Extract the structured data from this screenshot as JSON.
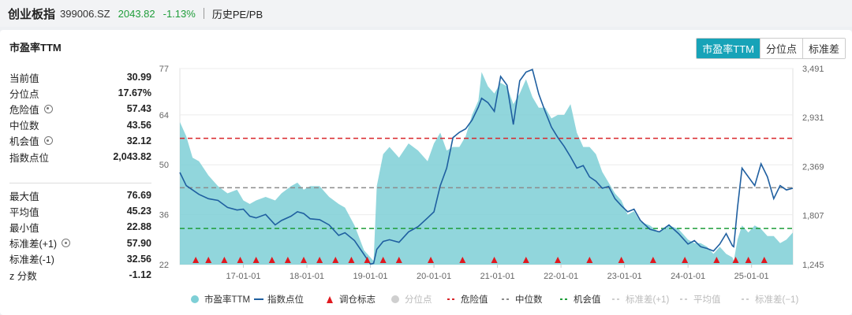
{
  "header": {
    "name": "创业板指",
    "code": "399006.SZ",
    "price": "2043.82",
    "change": "-1.13%",
    "tab": "历史PE/PB"
  },
  "panel": {
    "title": "市盈率TTM",
    "buttons": [
      "市盈率TTM",
      "分位点",
      "标准差"
    ]
  },
  "stats_top": [
    {
      "label": "当前值",
      "value": "30.99",
      "gear": false
    },
    {
      "label": "分位点",
      "value": "17.67%",
      "gear": false
    },
    {
      "label": "危险值",
      "value": "57.43",
      "gear": true
    },
    {
      "label": "中位数",
      "value": "43.56",
      "gear": false
    },
    {
      "label": "机会值",
      "value": "32.12",
      "gear": true
    },
    {
      "label": "指数点位",
      "value": "2,043.82",
      "gear": false
    }
  ],
  "stats_bottom": [
    {
      "label": "最大值",
      "value": "76.69",
      "gear": false
    },
    {
      "label": "平均值",
      "value": "45.23",
      "gear": false
    },
    {
      "label": "最小值",
      "value": "22.88",
      "gear": false
    },
    {
      "label": "标准差(+1)",
      "value": "57.90",
      "gear": true
    },
    {
      "label": "标准差(-1)",
      "value": "32.56",
      "gear": false
    },
    {
      "label": "z 分数",
      "value": "-1.12",
      "gear": false
    }
  ],
  "chart_data": {
    "type": "area",
    "y_left": {
      "ticks": [
        "77",
        "64",
        "50",
        "36",
        "22"
      ],
      "values": [
        77,
        64,
        50,
        36,
        22
      ],
      "ylim": [
        22,
        77
      ]
    },
    "y_right": {
      "ticks": [
        "3,491",
        "2,931",
        "2,369",
        "1,807",
        "1,245"
      ],
      "values": [
        3491,
        2931,
        2369,
        1807,
        1245
      ],
      "ylim": [
        1245,
        3491
      ]
    },
    "x_ticks": [
      "17-01-01",
      "18-01-01",
      "19-01-01",
      "20-01-01",
      "21-01-01",
      "22-01-01",
      "23-01-01",
      "24-01-01",
      "25-01-01"
    ],
    "x_range_years": [
      2016.0,
      2025.65
    ],
    "x_tick_years": [
      2017,
      2018,
      2019,
      2020,
      2021,
      2022,
      2023,
      2024,
      2025
    ],
    "ref_lines": [
      {
        "name": "危险值",
        "value": 57.43,
        "color": "#d9252a"
      },
      {
        "name": "中位数",
        "value": 43.56,
        "color": "#8c8c8c"
      },
      {
        "name": "机会值",
        "value": 32.12,
        "color": "#1f9d3a"
      }
    ],
    "series": [
      {
        "name": "市盈率TTM",
        "axis": "left",
        "color": "#7ecfd6",
        "x": [
          2016.0,
          2016.1,
          2016.2,
          2016.3,
          2016.45,
          2016.6,
          2016.75,
          2016.9,
          2017.0,
          2017.1,
          2017.2,
          2017.35,
          2017.5,
          2017.6,
          2017.75,
          2017.85,
          2017.95,
          2018.05,
          2018.2,
          2018.35,
          2018.5,
          2018.6,
          2018.75,
          2018.9,
          2019.0,
          2019.05,
          2019.1,
          2019.2,
          2019.3,
          2019.45,
          2019.6,
          2019.75,
          2019.9,
          2020.0,
          2020.1,
          2020.2,
          2020.3,
          2020.4,
          2020.5,
          2020.6,
          2020.7,
          2020.75,
          2020.85,
          2020.95,
          2021.05,
          2021.15,
          2021.25,
          2021.35,
          2021.45,
          2021.55,
          2021.65,
          2021.75,
          2021.85,
          2021.95,
          2022.05,
          2022.15,
          2022.25,
          2022.35,
          2022.45,
          2022.55,
          2022.65,
          2022.75,
          2022.85,
          2022.95,
          2023.05,
          2023.15,
          2023.25,
          2023.4,
          2023.55,
          2023.7,
          2023.85,
          2024.0,
          2024.1,
          2024.2,
          2024.3,
          2024.4,
          2024.5,
          2024.6,
          2024.7,
          2024.72,
          2024.78,
          2024.85,
          2024.95,
          2025.05,
          2025.15,
          2025.25,
          2025.35,
          2025.45,
          2025.55,
          2025.65
        ],
        "y": [
          62,
          58,
          52,
          51,
          47,
          44,
          42,
          43,
          40,
          39,
          40,
          41,
          40,
          42,
          44,
          45,
          43,
          44,
          44,
          41,
          39,
          38,
          33,
          26,
          24,
          23,
          44,
          53,
          55,
          52,
          56,
          54,
          51,
          56,
          59,
          54,
          55,
          55,
          58,
          64,
          68,
          76,
          72,
          70,
          73,
          72,
          67,
          70,
          74,
          69,
          66,
          66,
          63,
          64,
          64,
          67,
          59,
          55,
          55,
          53,
          48,
          45,
          42,
          40,
          36,
          37,
          34,
          33,
          31,
          33,
          32,
          29,
          28,
          28,
          27,
          25,
          27,
          25,
          24,
          23,
          29,
          33,
          31,
          33,
          32,
          30,
          30,
          28,
          29,
          31
        ]
      },
      {
        "name": "指数点位",
        "axis": "right",
        "color": "#1f5fa0",
        "x": [
          2016.0,
          2016.1,
          2016.2,
          2016.3,
          2016.45,
          2016.6,
          2016.75,
          2016.9,
          2017.0,
          2017.1,
          2017.2,
          2017.35,
          2017.5,
          2017.6,
          2017.75,
          2017.85,
          2017.95,
          2018.05,
          2018.2,
          2018.35,
          2018.5,
          2018.6,
          2018.75,
          2018.9,
          2019.0,
          2019.05,
          2019.1,
          2019.2,
          2019.3,
          2019.45,
          2019.6,
          2019.75,
          2019.9,
          2020.0,
          2020.1,
          2020.2,
          2020.3,
          2020.4,
          2020.5,
          2020.6,
          2020.7,
          2020.75,
          2020.85,
          2020.95,
          2021.05,
          2021.15,
          2021.25,
          2021.35,
          2021.45,
          2021.55,
          2021.65,
          2021.75,
          2021.85,
          2021.95,
          2022.05,
          2022.15,
          2022.25,
          2022.35,
          2022.45,
          2022.55,
          2022.65,
          2022.75,
          2022.85,
          2022.95,
          2023.05,
          2023.15,
          2023.25,
          2023.4,
          2023.55,
          2023.7,
          2023.85,
          2024.0,
          2024.1,
          2024.2,
          2024.3,
          2024.4,
          2024.5,
          2024.6,
          2024.7,
          2024.72,
          2024.78,
          2024.85,
          2024.95,
          2025.05,
          2025.15,
          2025.25,
          2025.35,
          2025.45,
          2025.55,
          2025.65
        ],
        "y": [
          2300,
          2150,
          2100,
          2050,
          2000,
          1980,
          1900,
          1870,
          1880,
          1800,
          1780,
          1820,
          1700,
          1750,
          1800,
          1850,
          1830,
          1770,
          1760,
          1700,
          1580,
          1610,
          1520,
          1360,
          1250,
          1260,
          1420,
          1510,
          1530,
          1500,
          1620,
          1680,
          1780,
          1850,
          2150,
          2350,
          2700,
          2760,
          2800,
          2900,
          3050,
          3150,
          3100,
          3000,
          3400,
          3300,
          2850,
          3350,
          3450,
          3480,
          3200,
          3000,
          2820,
          2700,
          2600,
          2480,
          2350,
          2380,
          2250,
          2200,
          2120,
          2140,
          2000,
          1920,
          1850,
          1880,
          1750,
          1650,
          1620,
          1700,
          1600,
          1480,
          1520,
          1450,
          1430,
          1400,
          1480,
          1600,
          1460,
          1450,
          1900,
          2350,
          2250,
          2150,
          2400,
          2250,
          2000,
          2150,
          2100,
          2120
        ]
      }
    ],
    "signals": {
      "label": "调仓标志",
      "color": "#e0191f",
      "x": [
        2016.25,
        2016.45,
        2016.7,
        2016.95,
        2017.2,
        2017.45,
        2017.7,
        2017.95,
        2018.2,
        2018.45,
        2018.7,
        2018.95,
        2019.2,
        2019.45,
        2019.95,
        2020.45,
        2020.95,
        2021.45,
        2021.95,
        2022.45,
        2022.95,
        2023.45,
        2023.95,
        2024.45,
        2024.75,
        2024.95,
        2025.2
      ]
    },
    "legend": {
      "placement": "bottom",
      "items": [
        "市盈率TTM",
        "指数点位",
        "调仓标志",
        "分位点",
        "危险值",
        "中位数",
        "机会值",
        "标准差(+1)",
        "平均值",
        "标准差(−1)"
      ]
    }
  }
}
